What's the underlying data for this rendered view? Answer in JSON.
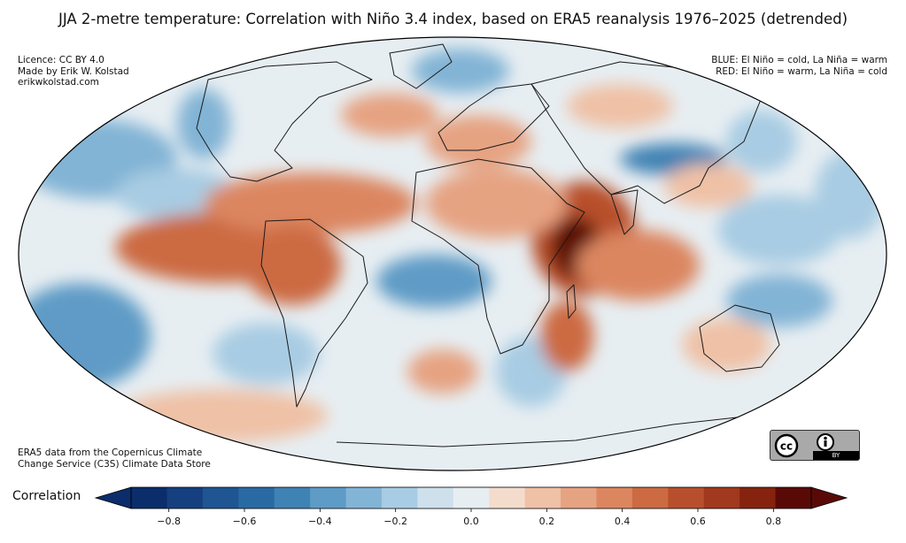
{
  "title": "JJA 2-metre temperature: Correlation with Niño 3.4 index, based on ERA5 reanalysis 1976–2025 (detrended)",
  "credits": [
    "Licence: CC BY 4.0",
    "Made by Erik W. Kolstad",
    "erikwkolstad.com"
  ],
  "legend_notes": [
    "BLUE: El Niño = cold, La Niña = warm",
    "RED: El Niño = warm, La Niña = cold"
  ],
  "source": [
    "ERA5 data from the Copernicus Climate",
    "Change Service (C3S) Climate Data Store"
  ],
  "license_badge": {
    "cc": "cc",
    "by": "BY"
  },
  "colorbar": {
    "label": "Correlation",
    "ticks": [
      "−0.8",
      "−0.6",
      "−0.4",
      "−0.2",
      "0.0",
      "0.2",
      "0.4",
      "0.6",
      "0.8"
    ],
    "tick_values": [
      -0.8,
      -0.6,
      -0.4,
      -0.2,
      0.0,
      0.2,
      0.4,
      0.6,
      0.8
    ],
    "bounds": [
      -0.9,
      0.9
    ],
    "step": 0.1,
    "colors": [
      "#0b2d6b",
      "#163f7f",
      "#1e5592",
      "#2a6aa2",
      "#3f82b4",
      "#5e9bc6",
      "#82b4d5",
      "#a8cce3",
      "#cde0ec",
      "#e7eef2",
      "#f4dccd",
      "#efc1a6",
      "#e6a382",
      "#dc8660",
      "#cc6a42",
      "#b84f2c",
      "#a0391d",
      "#86230f",
      "#5a0a06"
    ],
    "extend": "both"
  },
  "map": {
    "projection": "Mollweide",
    "region": "global",
    "colors": {
      "strong_warm": "#5a0a06",
      "warm": "#cc6a42",
      "light_warm": "#efc1a6",
      "neutral": "#e7eef2",
      "light_cold": "#a8cce3",
      "cold": "#3f82b4",
      "coast": "#1a1a1a"
    }
  }
}
